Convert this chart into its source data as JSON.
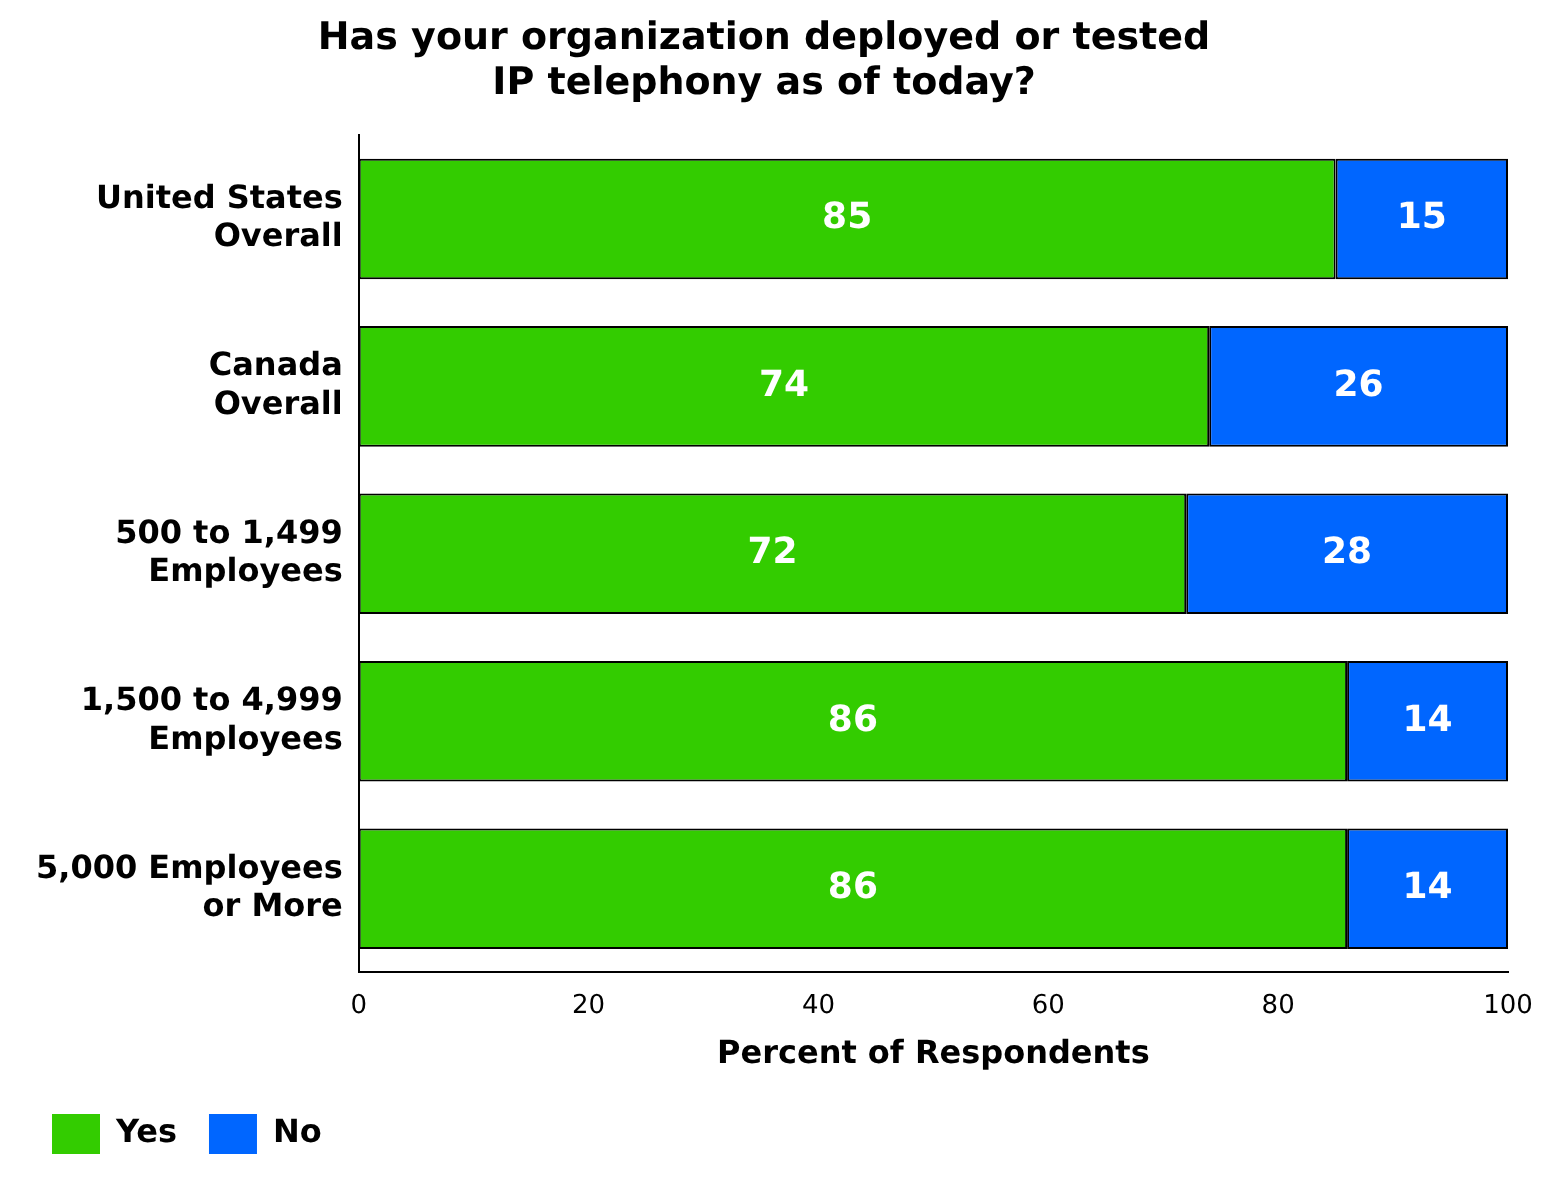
{
  "chart_data": {
    "type": "bar",
    "orientation": "horizontal",
    "stacked": true,
    "title": "Has your organization deployed or tested\nIP telephony as of today?",
    "xlabel": "Percent of Respondents",
    "categories": [
      "United States\nOverall",
      "Canada\nOverall",
      "500 to 1,499\nEmployees",
      "1,500 to 4,999\nEmployees",
      "5,000 Employees\nor More"
    ],
    "series": [
      {
        "name": "Yes",
        "color": "#33cc00",
        "values": [
          85,
          74,
          72,
          86,
          86
        ]
      },
      {
        "name": "No",
        "color": "#0066ff",
        "values": [
          15,
          26,
          28,
          14,
          14
        ]
      }
    ],
    "xlim": [
      0,
      100
    ],
    "xticks": [
      0,
      20,
      40,
      60,
      80,
      100
    ],
    "grid": false,
    "legend": "bottom",
    "data_labels": true
  }
}
